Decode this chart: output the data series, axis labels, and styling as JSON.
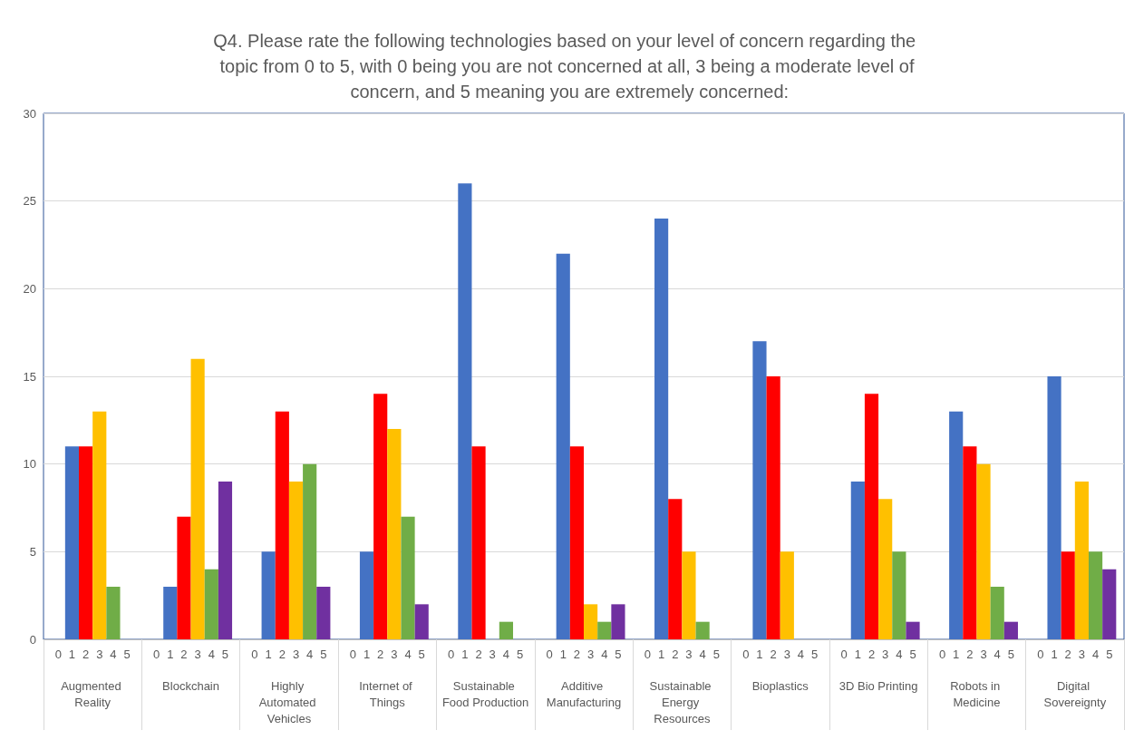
{
  "chart_data": {
    "type": "bar",
    "title": "Q4. Please rate the following technologies based on your level of concern regarding the topic from 0 to 5, with 0 being you are not concerned at all, 3 being a moderate level of concern, and 5 meaning you are extremely concerned:",
    "categories": [
      "Augmented Reality",
      "Blockchain",
      "Highly Automated Vehicles",
      "Internet of Things",
      "Sustainable Food Production",
      "Additive Manufacturing",
      "Sustainable Energy Resources",
      "Bioplastics",
      "3D Bio Printing",
      "Robots in Medicine",
      "Digital Sovereignty"
    ],
    "series": [
      {
        "name": "0",
        "values": [
          0,
          0,
          0,
          0,
          0,
          0,
          0,
          0,
          0,
          0,
          0
        ]
      },
      {
        "name": "1",
        "color": "#4472c4",
        "values": [
          11,
          3,
          5,
          5,
          26,
          22,
          24,
          17,
          9,
          13,
          15
        ]
      },
      {
        "name": "2",
        "color": "#ff0000",
        "values": [
          11,
          7,
          13,
          14,
          11,
          11,
          8,
          15,
          14,
          11,
          5
        ]
      },
      {
        "name": "3",
        "color": "#ffc000",
        "values": [
          13,
          16,
          9,
          12,
          0,
          2,
          5,
          5,
          8,
          10,
          9
        ]
      },
      {
        "name": "4",
        "color": "#70ad47",
        "values": [
          3,
          4,
          10,
          7,
          1,
          1,
          1,
          0,
          5,
          3,
          5
        ]
      },
      {
        "name": "5",
        "color": "#7030a0",
        "values": [
          0,
          9,
          3,
          2,
          0,
          2,
          0,
          0,
          1,
          1,
          4
        ]
      }
    ],
    "ylim": [
      0,
      30
    ],
    "yticks": [
      0,
      5,
      10,
      15,
      20,
      25,
      30
    ],
    "grid": "y"
  }
}
